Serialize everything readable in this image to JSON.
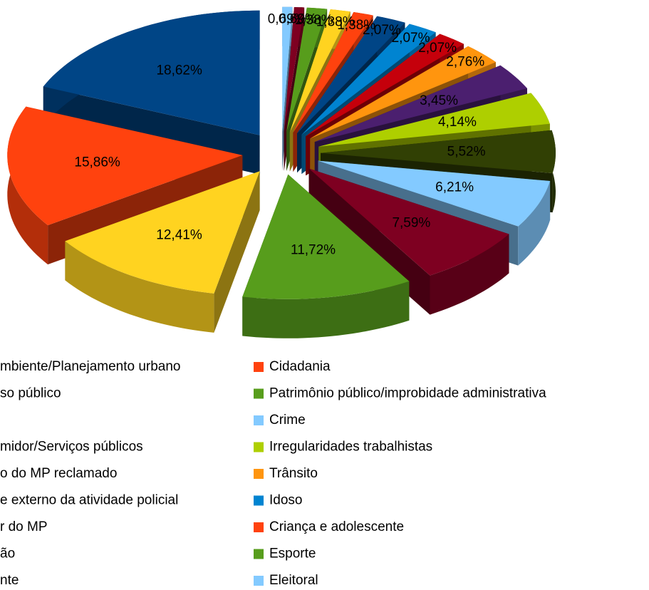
{
  "chart_data": {
    "type": "pie",
    "series": [
      {
        "name": "mbiente/Planejamento urbano",
        "color": "#004586",
        "values": [
          18.62
        ],
        "value_labels": [
          "18,62%"
        ]
      },
      {
        "name": "Cidadania",
        "color": "#ff420e",
        "values": [
          15.86
        ],
        "value_labels": [
          "15,86%"
        ]
      },
      {
        "name": "so público",
        "color": "#ffd320",
        "values": [
          12.41
        ],
        "value_labels": [
          "12,41%"
        ]
      },
      {
        "name": "Patrimônio público/improbidade administrativa",
        "color": "#579d1c",
        "values": [
          11.72
        ],
        "value_labels": [
          "11,72%"
        ]
      },
      {
        "color": "#7e0021",
        "values": [
          7.59
        ],
        "value_labels": [
          "7,59%"
        ]
      },
      {
        "name": "Crime",
        "color": "#83caff",
        "values": [
          6.21
        ],
        "value_labels": [
          "6,21%"
        ]
      },
      {
        "name": "midor/Serviços públicos",
        "color": "#314004",
        "values": [
          5.52
        ],
        "value_labels": [
          "5,52%"
        ]
      },
      {
        "name": "Irregularidades trabalhistas",
        "color": "#aecf00",
        "values": [
          4.14
        ],
        "value_labels": [
          "4,14%"
        ]
      },
      {
        "name": "o do MP reclamado",
        "color": "#4b1f6f",
        "values": [
          3.45
        ],
        "value_labels": [
          "3,45%"
        ]
      },
      {
        "name": "Trânsito",
        "color": "#ff950e",
        "values": [
          2.76
        ],
        "value_labels": [
          "2,76%"
        ]
      },
      {
        "name": "e externo da atividade policial",
        "color": "#c5000b",
        "values": [
          2.07
        ],
        "value_labels": [
          "2,07%"
        ]
      },
      {
        "name": "Idoso",
        "color": "#0084d1",
        "values": [
          2.07
        ],
        "value_labels": [
          "2,07%"
        ]
      },
      {
        "name": "r do MP",
        "color": "#004586",
        "values": [
          2.07
        ],
        "value_labels": [
          "2,07%"
        ]
      },
      {
        "name": "Criança e adolescente",
        "color": "#ff420e",
        "values": [
          1.38
        ],
        "value_labels": [
          "1,38%"
        ]
      },
      {
        "name": "ão",
        "color": "#ffd320",
        "values": [
          1.38
        ],
        "value_labels": [
          "1,38%"
        ]
      },
      {
        "name": "Esporte",
        "color": "#579d1c",
        "values": [
          1.38
        ],
        "value_labels": [
          "1,38%"
        ]
      },
      {
        "name": "nte",
        "color": "#7e0021",
        "values": [
          0.69
        ],
        "value_labels": [
          "0,69%"
        ]
      },
      {
        "name": "Eleitoral",
        "color": "#83caff",
        "values": [
          0.69
        ],
        "value_labels": [
          "0,69%"
        ]
      }
    ]
  }
}
